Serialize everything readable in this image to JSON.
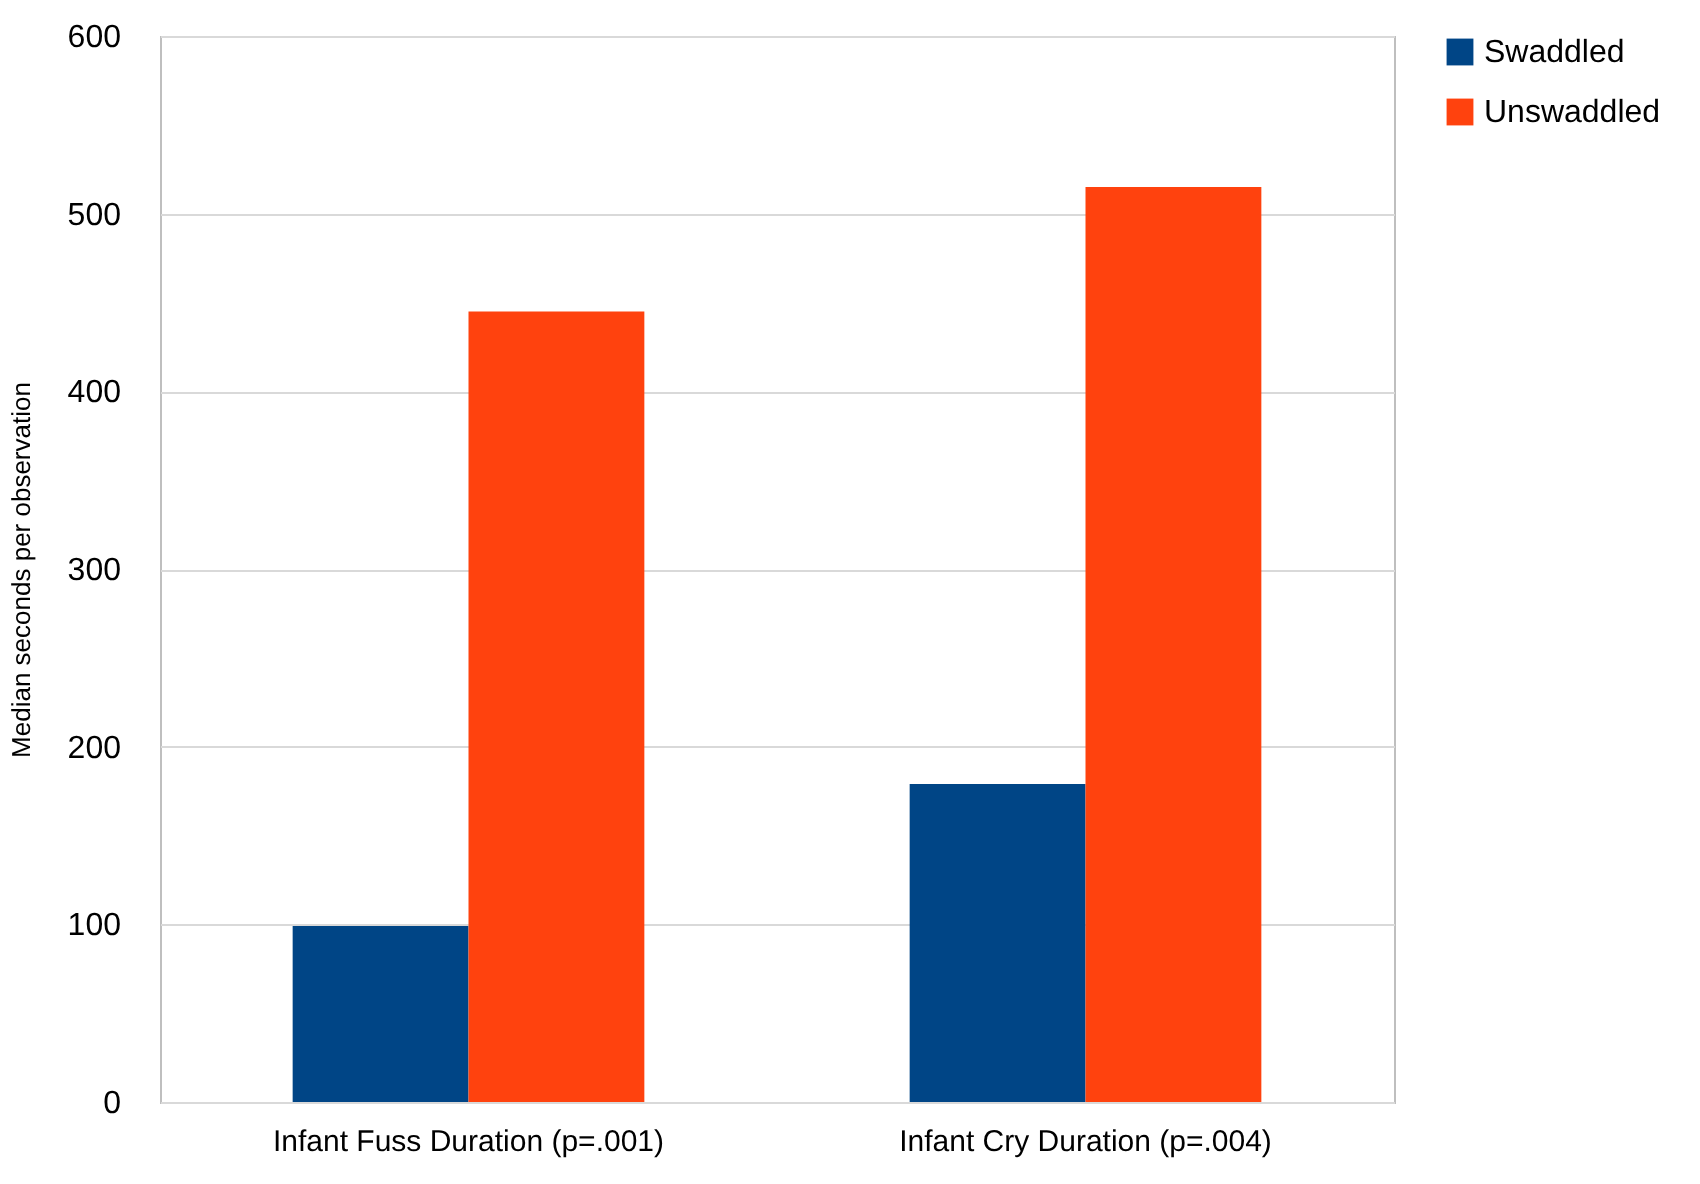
{
  "chart_data": {
    "type": "bar",
    "ylabel": "Median seconds per observation",
    "categories": [
      "Infant Fuss Duration (p=.001)",
      "Infant Cry Duration (p=.004)"
    ],
    "series": [
      {
        "name": "Swaddled",
        "color": "#004586",
        "values": [
          99,
          179
        ]
      },
      {
        "name": "Unswaddled",
        "color": "#ff420e",
        "values": [
          445,
          515
        ]
      }
    ],
    "ylim": [
      0,
      600
    ],
    "yticks": [
      0,
      100,
      200,
      300,
      400,
      500,
      600
    ],
    "grid": "y",
    "legend": "right"
  }
}
